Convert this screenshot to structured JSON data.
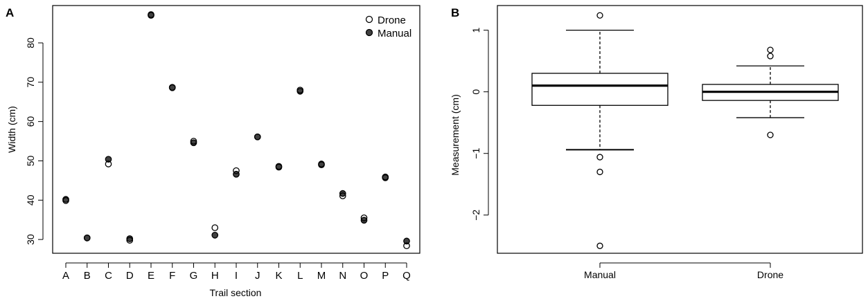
{
  "chart_data": [
    {
      "type": "scatter",
      "panel_label": "A",
      "title": "",
      "xlabel": "Trail section",
      "ylabel": "Width (cm)",
      "ylim": [
        26.5,
        89.5
      ],
      "yticks": [
        30,
        40,
        50,
        60,
        70,
        80
      ],
      "categories": [
        "A",
        "B",
        "C",
        "D",
        "E",
        "F",
        "G",
        "H",
        "I",
        "J",
        "K",
        "L",
        "M",
        "N",
        "O",
        "P",
        "Q"
      ],
      "series": [
        {
          "name": "Drone",
          "marker": "open-circle",
          "values": [
            39.9,
            30.4,
            49.2,
            29.8,
            87.0,
            68.6,
            55.0,
            33.0,
            47.5,
            56.1,
            48.6,
            68.0,
            49.0,
            41.1,
            35.5,
            45.9,
            28.4
          ]
        },
        {
          "name": "Manual",
          "marker": "filled-circle",
          "values": [
            40.2,
            30.4,
            50.4,
            30.2,
            87.2,
            68.7,
            54.6,
            31.1,
            46.6,
            56.1,
            48.4,
            67.7,
            49.2,
            41.7,
            34.9,
            45.7,
            29.6
          ]
        }
      ],
      "legend": "top-right",
      "colors": {
        "drone": "#ffffff",
        "manual": "#404040",
        "stroke": "#000000"
      }
    },
    {
      "type": "box",
      "panel_label": "B",
      "title": "",
      "xlabel": "",
      "ylabel": "Measurement (cm)",
      "ylim": [
        -2.62,
        1.4
      ],
      "yticks": [
        -2,
        -1,
        0,
        1
      ],
      "categories": [
        "Manual",
        "Drone"
      ],
      "boxes": [
        {
          "name": "Manual",
          "whisker_low": -0.94,
          "q1": -0.22,
          "median": 0.1,
          "q3": 0.3,
          "whisker_high": 1.0,
          "outliers": [
            1.24,
            -1.06,
            -1.3,
            -2.5
          ]
        },
        {
          "name": "Drone",
          "whisker_low": -0.42,
          "q1": -0.14,
          "median": 0.0,
          "q3": 0.12,
          "whisker_high": 0.42,
          "outliers": [
            0.68,
            0.58,
            -0.7
          ]
        }
      ]
    }
  ]
}
